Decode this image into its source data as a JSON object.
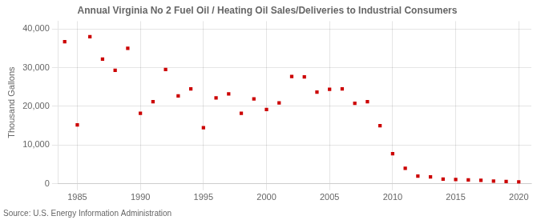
{
  "chart_data": {
    "type": "scatter",
    "title": "Annual Virginia No 2 Fuel Oil / Heating Oil Sales/Deliveries to Industrial Consumers",
    "ylabel": "Thousand Gallons",
    "source": "Source: U.S. Energy Information Administration",
    "color": "#cc0000",
    "marker": "square",
    "grid": true,
    "xlim": [
      1983.5,
      2021
    ],
    "ylim": [
      0,
      42000
    ],
    "xticks": [
      1985,
      1990,
      1995,
      2000,
      2005,
      2010,
      2015,
      2020
    ],
    "yticks": [
      0,
      {
        "value": 10000,
        "label": "10,000"
      },
      {
        "value": 20000,
        "label": "20,000"
      },
      {
        "value": 30000,
        "label": "30,000"
      },
      {
        "value": 40000,
        "label": "40,000"
      }
    ],
    "x": [
      1984,
      1985,
      1986,
      1987,
      1988,
      1989,
      1990,
      1991,
      1992,
      1993,
      1994,
      1995,
      1996,
      1997,
      1998,
      1999,
      2000,
      2001,
      2002,
      2003,
      2004,
      2005,
      2006,
      2007,
      2008,
      2009,
      2010,
      2011,
      2012,
      2013,
      2014,
      2015,
      2016,
      2017,
      2018,
      2019,
      2020
    ],
    "values": [
      36700,
      15200,
      38000,
      32200,
      29300,
      35000,
      18200,
      21200,
      29500,
      22700,
      24500,
      14500,
      22200,
      23200,
      18200,
      21900,
      19200,
      20900,
      27700,
      27600,
      23700,
      24400,
      24500,
      20800,
      21200,
      15000,
      7800,
      4000,
      2000,
      1800,
      1200,
      1100,
      1000,
      900,
      700,
      600,
      500
    ]
  }
}
